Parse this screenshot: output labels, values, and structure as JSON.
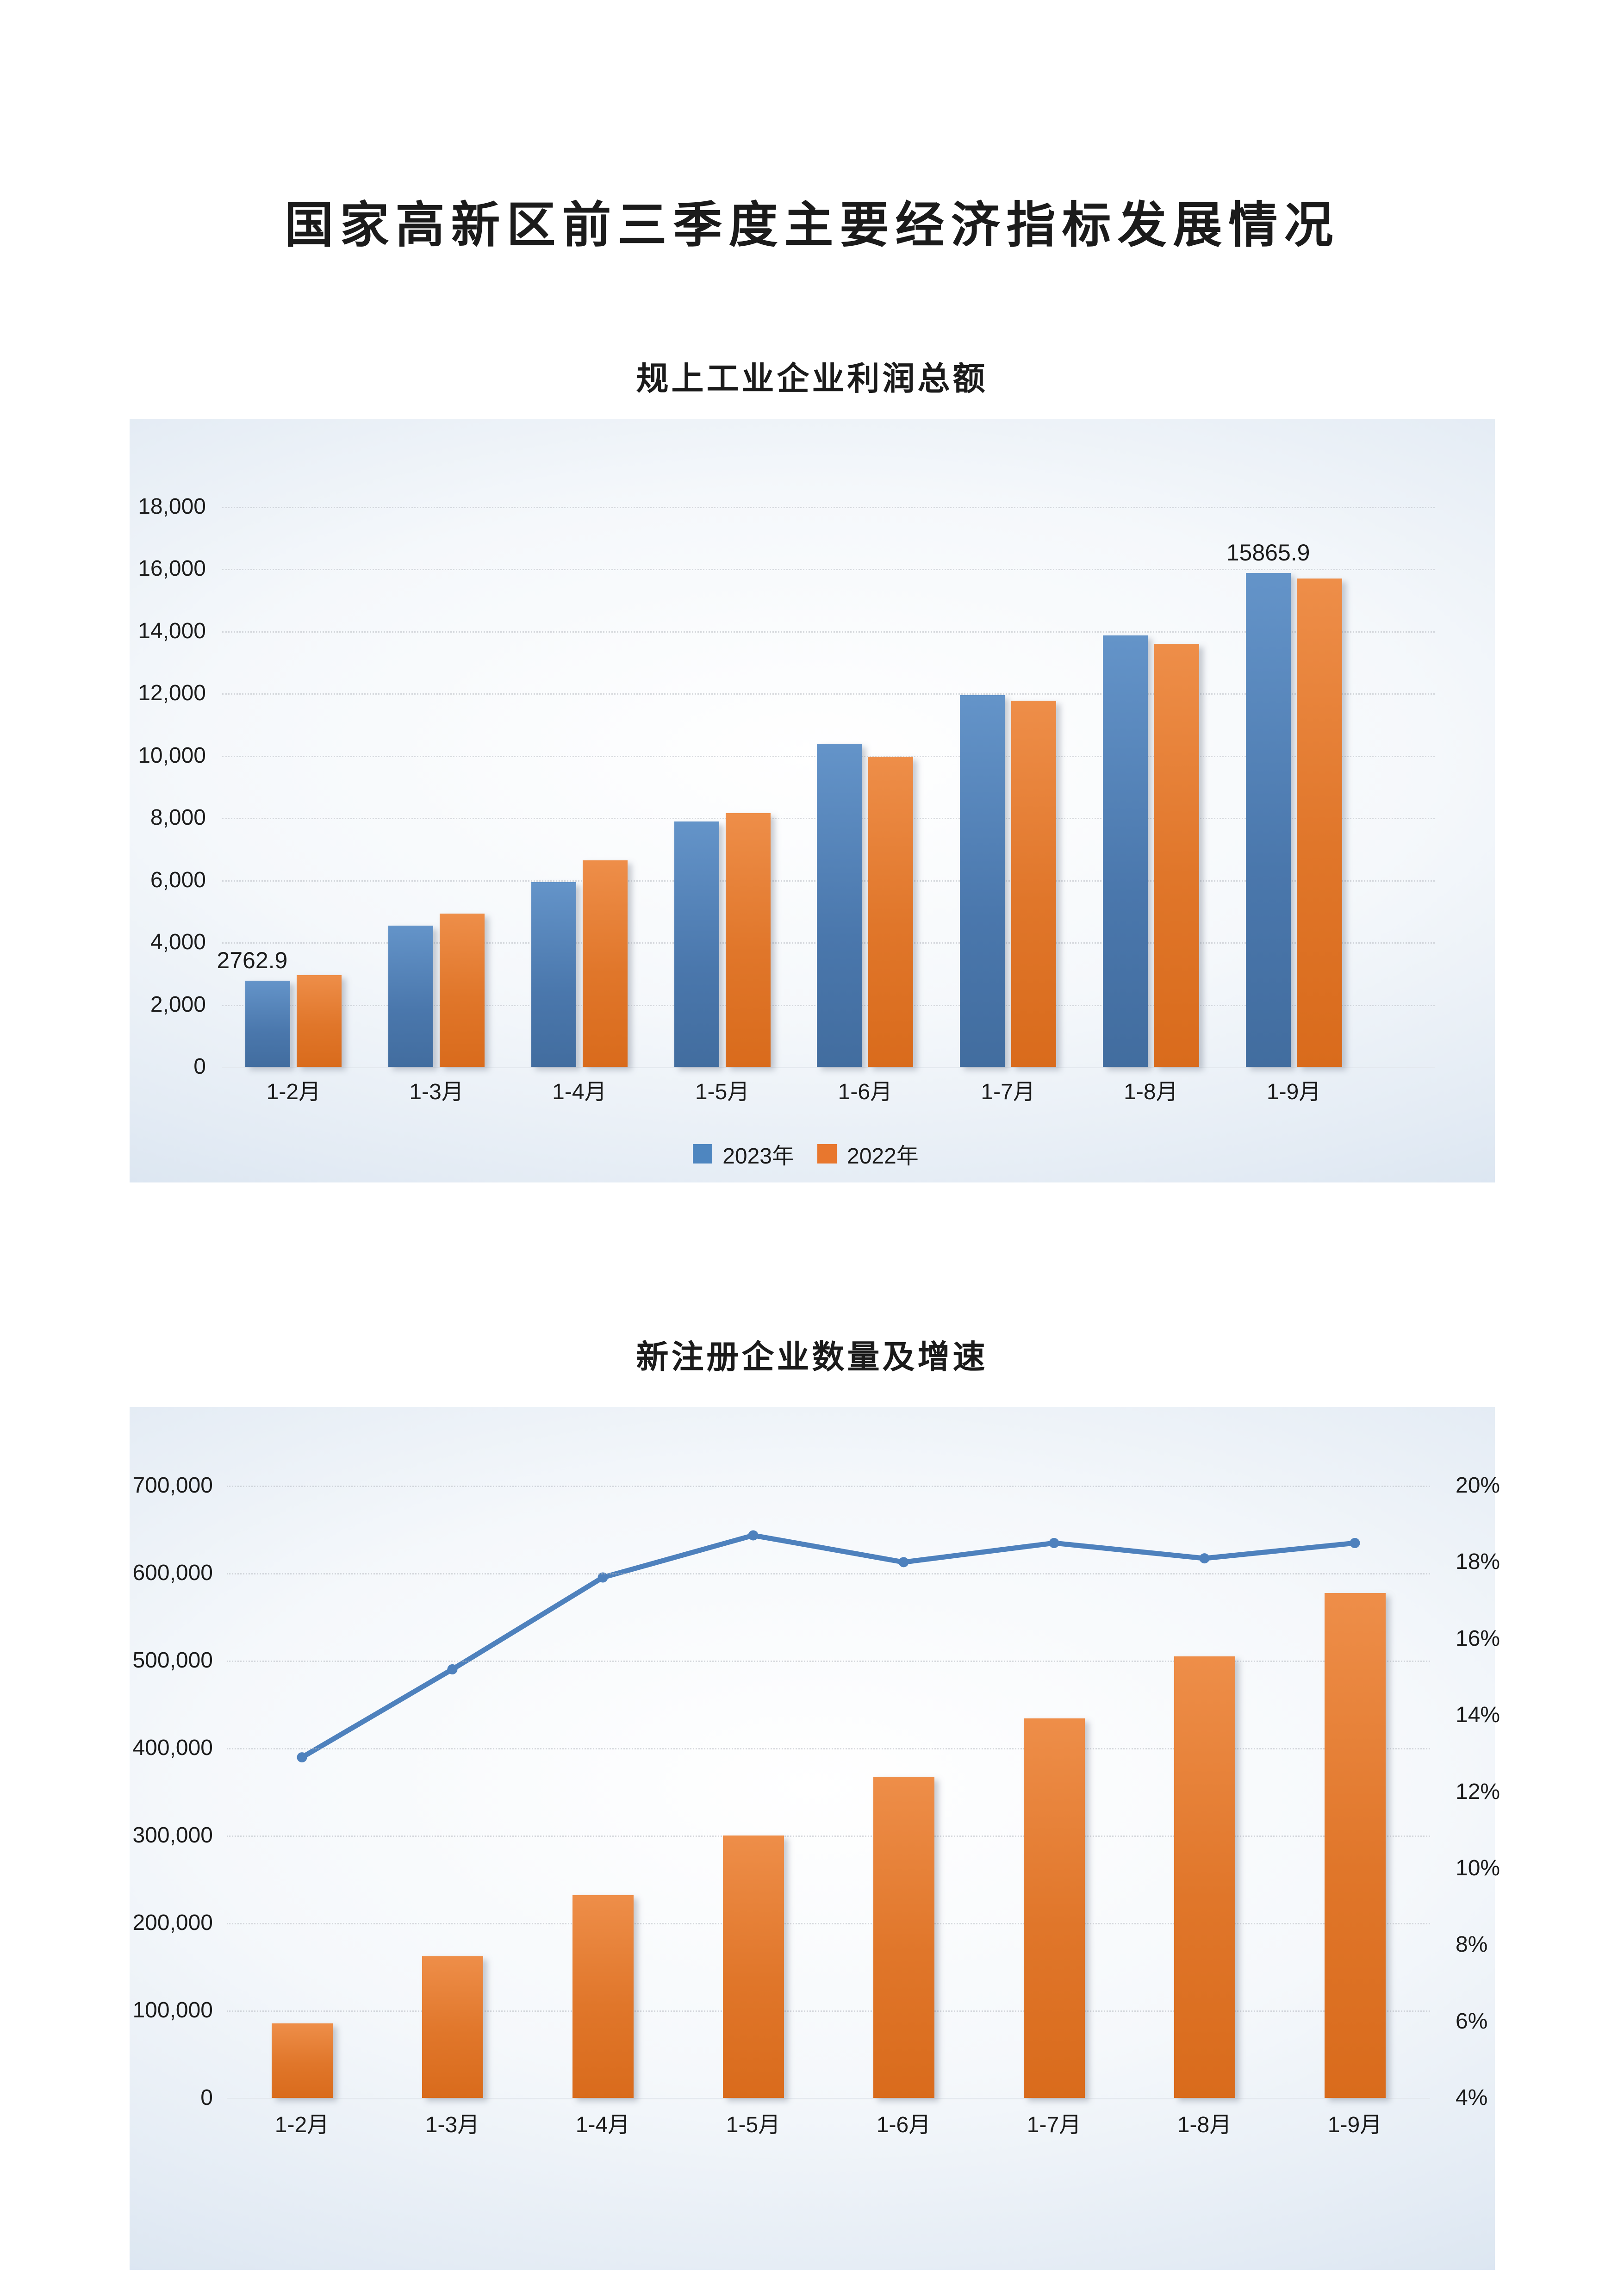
{
  "page": {
    "title": "国家高新区前三季度主要经济指标发展情况"
  },
  "chart_data": [
    {
      "type": "bar",
      "title": "规上工业企业利润总额",
      "categories": [
        "1-2月",
        "1-3月",
        "1-4月",
        "1-5月",
        "1-6月",
        "1-7月",
        "1-8月",
        "1-9月"
      ],
      "series": [
        {
          "name": "2023年",
          "color": "#4f81bd",
          "values": [
            2762.9,
            4540,
            5930,
            7890,
            10380,
            11950,
            13870,
            15865.9
          ]
        },
        {
          "name": "2022年",
          "color": "#e8772e",
          "values": [
            2950,
            4920,
            6640,
            8150,
            9970,
            11760,
            13590,
            15700
          ]
        }
      ],
      "ylim": [
        0,
        18000
      ],
      "ytick_step": 2000,
      "ytick_labels": [
        "0",
        "2,000",
        "4,000",
        "6,000",
        "8,000",
        "10,000",
        "12,000",
        "14,000",
        "16,000",
        "18,000"
      ],
      "data_labels": [
        {
          "series": 0,
          "category": 0,
          "text": "2762.9"
        },
        {
          "series": 0,
          "category": 7,
          "text": "15865.9"
        }
      ],
      "grid": true,
      "legend_position": "bottom"
    },
    {
      "type": "bar+line",
      "title": "新注册企业数量及增速",
      "categories": [
        "1-2月",
        "1-3月",
        "1-4月",
        "1-5月",
        "1-6月",
        "1-7月",
        "1-8月",
        "1-9月"
      ],
      "bar_series": {
        "color": "#e8772e",
        "values": [
          85000,
          162000,
          232000,
          300000,
          367000,
          434000,
          505000,
          577000
        ]
      },
      "line_series": {
        "color": "#4e81bd",
        "values": [
          12.9,
          15.2,
          17.6,
          18.7,
          18.0,
          18.5,
          18.1,
          18.5
        ]
      },
      "left_axis": {
        "lim": [
          0,
          700000
        ],
        "step": 100000,
        "labels": [
          "0",
          "100,000",
          "200,000",
          "300,000",
          "400,000",
          "500,000",
          "600,000",
          "700,000"
        ]
      },
      "right_axis": {
        "lim": [
          4,
          20
        ],
        "step": 2,
        "labels": [
          "4%",
          "6%",
          "8%",
          "10%",
          "12%",
          "14%",
          "16%",
          "18%",
          "20%"
        ]
      },
      "grid": true,
      "legend_position": "none"
    }
  ]
}
